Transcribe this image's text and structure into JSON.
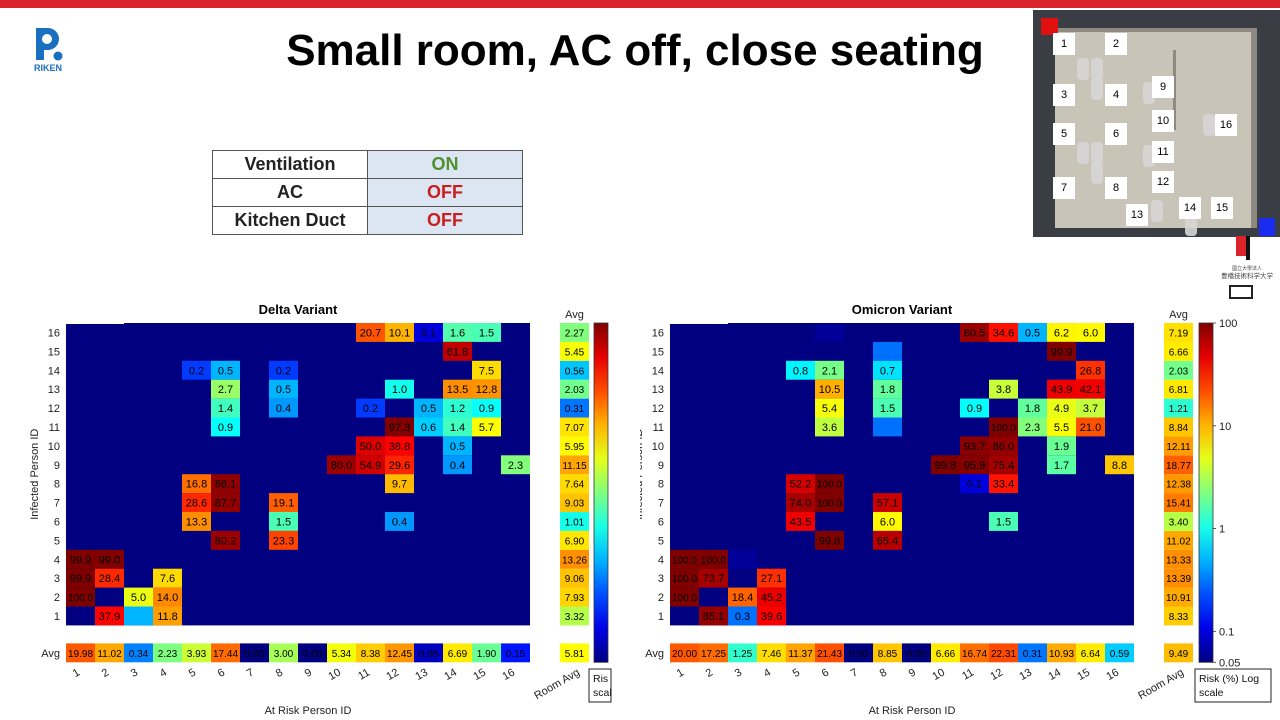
{
  "slide_title": "Small room, AC off, close seating",
  "settings": [
    {
      "label": "Ventilation",
      "value": "ON",
      "color": "#4e8f2e"
    },
    {
      "label": "AC",
      "value": "OFF",
      "color": "#c81e1e"
    },
    {
      "label": "Kitchen Duct",
      "value": "OFF",
      "color": "#c81e1e"
    }
  ],
  "logo_text": "RIKEN",
  "floorplan": {
    "seats": [
      {
        "id": "1",
        "x": 1064,
        "y": 44
      },
      {
        "id": "2",
        "x": 1116,
        "y": 44
      },
      {
        "id": "3",
        "x": 1064,
        "y": 95
      },
      {
        "id": "4",
        "x": 1116,
        "y": 95
      },
      {
        "id": "5",
        "x": 1064,
        "y": 134
      },
      {
        "id": "6",
        "x": 1116,
        "y": 134
      },
      {
        "id": "7",
        "x": 1064,
        "y": 188
      },
      {
        "id": "8",
        "x": 1116,
        "y": 188
      },
      {
        "id": "9",
        "x": 1163,
        "y": 87
      },
      {
        "id": "10",
        "x": 1163,
        "y": 121
      },
      {
        "id": "11",
        "x": 1163,
        "y": 152
      },
      {
        "id": "12",
        "x": 1163,
        "y": 182
      },
      {
        "id": "13",
        "x": 1137,
        "y": 215
      },
      {
        "id": "14",
        "x": 1190,
        "y": 208
      },
      {
        "id": "15",
        "x": 1222,
        "y": 208
      },
      {
        "id": "16",
        "x": 1226,
        "y": 125
      }
    ]
  },
  "university_label": "豊橋技術科学大学",
  "chart_data": [
    {
      "type": "heatmap",
      "title": "Delta Variant",
      "xlabel": "At Risk Person ID",
      "ylabel": "Infected Person ID",
      "x_categories": [
        "1",
        "2",
        "3",
        "4",
        "5",
        "6",
        "7",
        "8",
        "9",
        "10",
        "11",
        "12",
        "13",
        "14",
        "15",
        "16"
      ],
      "y_categories": [
        "1",
        "2",
        "3",
        "4",
        "5",
        "6",
        "7",
        "8",
        "9",
        "10",
        "11",
        "12",
        "13",
        "14",
        "15",
        "16"
      ],
      "room_avg_label": "Room Avg",
      "avg_label": "Avg",
      "cells": [
        {
          "row": "16",
          "col": 11,
          "value": "20.7"
        },
        {
          "row": "16",
          "col": 12,
          "value": "10.1"
        },
        {
          "row": "16",
          "col": 13,
          "value": "0.1"
        },
        {
          "row": "16",
          "col": 14,
          "value": "1.6"
        },
        {
          "row": "16",
          "col": 15,
          "value": "1.5"
        },
        {
          "row": "15",
          "col": 14,
          "value": "61.8"
        },
        {
          "row": "14",
          "col": 5,
          "value": "0.2"
        },
        {
          "row": "14",
          "col": 6,
          "value": "0.5"
        },
        {
          "row": "14",
          "col": 8,
          "value": "0.2"
        },
        {
          "row": "14",
          "col": 15,
          "value": "7.5"
        },
        {
          "row": "13",
          "col": 6,
          "value": "2.7"
        },
        {
          "row": "13",
          "col": 8,
          "value": "0.5"
        },
        {
          "row": "13",
          "col": 12,
          "value": "1.0"
        },
        {
          "row": "13",
          "col": 14,
          "value": "13.5"
        },
        {
          "row": "13",
          "col": 15,
          "value": "12.8"
        },
        {
          "row": "12",
          "col": 6,
          "value": "1.4"
        },
        {
          "row": "12",
          "col": 8,
          "value": "0.4"
        },
        {
          "row": "12",
          "col": 11,
          "value": "0.2"
        },
        {
          "row": "12",
          "col": 13,
          "value": "0.5"
        },
        {
          "row": "12",
          "col": 14,
          "value": "1.2"
        },
        {
          "row": "12",
          "col": 15,
          "value": "0.9"
        },
        {
          "row": "11",
          "col": 6,
          "value": "0.9"
        },
        {
          "row": "11",
          "col": 12,
          "value": "97.3"
        },
        {
          "row": "11",
          "col": 13,
          "value": "0.6"
        },
        {
          "row": "11",
          "col": 14,
          "value": "1.4"
        },
        {
          "row": "11",
          "col": 15,
          "value": "5.7"
        },
        {
          "row": "10",
          "col": 11,
          "value": "50.0"
        },
        {
          "row": "10",
          "col": 12,
          "value": "38.8"
        },
        {
          "row": "10",
          "col": 14,
          "value": "0.5"
        },
        {
          "row": "9",
          "col": 10,
          "value": "80.0"
        },
        {
          "row": "9",
          "col": 11,
          "value": "54.9"
        },
        {
          "row": "9",
          "col": 12,
          "value": "29.6"
        },
        {
          "row": "9",
          "col": 14,
          "value": "0.4"
        },
        {
          "row": "9",
          "col": 16,
          "value": "2.3"
        },
        {
          "row": "8",
          "col": 5,
          "value": "16.8"
        },
        {
          "row": "8",
          "col": 6,
          "value": "88.1"
        },
        {
          "row": "8",
          "col": 12,
          "value": "9.7"
        },
        {
          "row": "7",
          "col": 5,
          "value": "28.6"
        },
        {
          "row": "7",
          "col": 6,
          "value": "87.7"
        },
        {
          "row": "7",
          "col": 8,
          "value": "19.1"
        },
        {
          "row": "6",
          "col": 5,
          "value": "13.3"
        },
        {
          "row": "6",
          "col": 8,
          "value": "1.5"
        },
        {
          "row": "6",
          "col": 12,
          "value": "0.4"
        },
        {
          "row": "5",
          "col": 6,
          "value": "80.2"
        },
        {
          "row": "5",
          "col": 8,
          "value": "23.3"
        },
        {
          "row": "4",
          "col": 1,
          "value": "99.9"
        },
        {
          "row": "4",
          "col": 2,
          "value": "99.0"
        },
        {
          "row": "3",
          "col": 1,
          "value": "99.9"
        },
        {
          "row": "3",
          "col": 2,
          "value": "28.4"
        },
        {
          "row": "3",
          "col": 4,
          "value": "7.6"
        },
        {
          "row": "2",
          "col": 1,
          "value": "100.0"
        },
        {
          "row": "2",
          "col": 3,
          "value": "5.0"
        },
        {
          "row": "2",
          "col": 4,
          "value": "14.0"
        },
        {
          "row": "1",
          "col": 2,
          "value": "37.9"
        },
        {
          "row": "1",
          "col": 4,
          "value": "11.8"
        }
      ],
      "unlabeled_cells": [
        {
          "row": "1",
          "col": 3,
          "value": 0.5
        },
        {
          "row": "11",
          "col": 8,
          "value": 0.05
        }
      ],
      "row_avg": {
        "16": "2.27",
        "15": "5.45",
        "14": "0.56",
        "13": "2.03",
        "12": "0.31",
        "11": "7.07",
        "10": "5.95",
        "9": "11.15",
        "8": "7.64",
        "7": "9.03",
        "6": "1.01",
        "5": "6.90",
        "4": "13.26",
        "3": "9.06",
        "2": "7.93",
        "1": "3.32"
      },
      "col_avg": [
        "19.98",
        "11.02",
        "0.34",
        "2.23",
        "3.93",
        "17.44",
        "0.00",
        "3.00",
        "0.00",
        "5.34",
        "8.38",
        "12.45",
        "0.08",
        "6.69",
        "1.90",
        "0.15"
      ],
      "room_avg": "5.81",
      "colorbar": {
        "scale": "log",
        "min": 0.05,
        "max": 100,
        "label": "Risk (%) Log scale"
      }
    },
    {
      "type": "heatmap",
      "title": "Omicron Variant",
      "xlabel": "At Risk Person ID",
      "ylabel": "Infected Person ID",
      "x_categories": [
        "1",
        "2",
        "3",
        "4",
        "5",
        "6",
        "7",
        "8",
        "9",
        "10",
        "11",
        "12",
        "13",
        "14",
        "15",
        "16"
      ],
      "y_categories": [
        "1",
        "2",
        "3",
        "4",
        "5",
        "6",
        "7",
        "8",
        "9",
        "10",
        "11",
        "12",
        "13",
        "14",
        "15",
        "16"
      ],
      "room_avg_label": "Room Avg",
      "avg_label": "Avg",
      "cells": [
        {
          "row": "16",
          "col": 11,
          "value": "80.5"
        },
        {
          "row": "16",
          "col": 12,
          "value": "34.6"
        },
        {
          "row": "16",
          "col": 13,
          "value": "0.5"
        },
        {
          "row": "16",
          "col": 14,
          "value": "6.2"
        },
        {
          "row": "16",
          "col": 15,
          "value": "6.0"
        },
        {
          "row": "15",
          "col": 14,
          "value": "99.9"
        },
        {
          "row": "14",
          "col": 5,
          "value": "0.8"
        },
        {
          "row": "14",
          "col": 6,
          "value": "2.1"
        },
        {
          "row": "14",
          "col": 8,
          "value": "0.7"
        },
        {
          "row": "14",
          "col": 15,
          "value": "26.8"
        },
        {
          "row": "13",
          "col": 6,
          "value": "10.5"
        },
        {
          "row": "13",
          "col": 8,
          "value": "1.8"
        },
        {
          "row": "13",
          "col": 12,
          "value": "3.8"
        },
        {
          "row": "13",
          "col": 14,
          "value": "43.9"
        },
        {
          "row": "13",
          "col": 15,
          "value": "42.1"
        },
        {
          "row": "12",
          "col": 6,
          "value": "5.4"
        },
        {
          "row": "12",
          "col": 8,
          "value": "1.5"
        },
        {
          "row": "12",
          "col": 11,
          "value": "0.9"
        },
        {
          "row": "12",
          "col": 13,
          "value": "1.8"
        },
        {
          "row": "12",
          "col": 14,
          "value": "4.9"
        },
        {
          "row": "12",
          "col": 15,
          "value": "3.7"
        },
        {
          "row": "11",
          "col": 6,
          "value": "3.6"
        },
        {
          "row": "11",
          "col": 12,
          "value": "100.0"
        },
        {
          "row": "11",
          "col": 13,
          "value": "2.3"
        },
        {
          "row": "11",
          "col": 14,
          "value": "5.5"
        },
        {
          "row": "11",
          "col": 15,
          "value": "21.0"
        },
        {
          "row": "10",
          "col": 11,
          "value": "93.7"
        },
        {
          "row": "10",
          "col": 12,
          "value": "86.0"
        },
        {
          "row": "10",
          "col": 14,
          "value": "1.9"
        },
        {
          "row": "9",
          "col": 10,
          "value": "99.8"
        },
        {
          "row": "9",
          "col": 11,
          "value": "95.9"
        },
        {
          "row": "9",
          "col": 12,
          "value": "75.4"
        },
        {
          "row": "9",
          "col": 14,
          "value": "1.7"
        },
        {
          "row": "9",
          "col": 16,
          "value": "8.8"
        },
        {
          "row": "8",
          "col": 5,
          "value": "52.2"
        },
        {
          "row": "8",
          "col": 6,
          "value": "100.0"
        },
        {
          "row": "8",
          "col": 11,
          "value": "0.1"
        },
        {
          "row": "8",
          "col": 12,
          "value": "33.4"
        },
        {
          "row": "7",
          "col": 5,
          "value": "74.0"
        },
        {
          "row": "7",
          "col": 6,
          "value": "100.0"
        },
        {
          "row": "7",
          "col": 8,
          "value": "57.1"
        },
        {
          "row": "6",
          "col": 5,
          "value": "43.5"
        },
        {
          "row": "6",
          "col": 8,
          "value": "6.0"
        },
        {
          "row": "6",
          "col": 12,
          "value": "1.5"
        },
        {
          "row": "5",
          "col": 6,
          "value": "99.8"
        },
        {
          "row": "5",
          "col": 8,
          "value": "65.4"
        },
        {
          "row": "4",
          "col": 1,
          "value": "100.0"
        },
        {
          "row": "4",
          "col": 2,
          "value": "100.0"
        },
        {
          "row": "3",
          "col": 1,
          "value": "100.0"
        },
        {
          "row": "3",
          "col": 2,
          "value": "73.7"
        },
        {
          "row": "3",
          "col": 4,
          "value": "27.1"
        },
        {
          "row": "2",
          "col": 1,
          "value": "100.0"
        },
        {
          "row": "2",
          "col": 3,
          "value": "18.4"
        },
        {
          "row": "2",
          "col": 4,
          "value": "45.2"
        },
        {
          "row": "1",
          "col": 2,
          "value": "85.1"
        },
        {
          "row": "1",
          "col": 3,
          "value": "0.3"
        },
        {
          "row": "1",
          "col": 4,
          "value": "39.6"
        }
      ],
      "unlabeled_cells": [
        {
          "row": "15",
          "col": 8,
          "value": 0.3
        },
        {
          "row": "11",
          "col": 8,
          "value": 0.3
        },
        {
          "row": "4",
          "col": 3,
          "value": 0.06
        },
        {
          "row": "16",
          "col": 6,
          "value": 0.06
        }
      ],
      "row_avg": {
        "16": "7.19",
        "15": "6.66",
        "14": "2.03",
        "13": "6.81",
        "12": "1.21",
        "11": "8.84",
        "10": "12.11",
        "9": "18.77",
        "8": "12.38",
        "7": "15.41",
        "6": "3.40",
        "5": "11.02",
        "4": "13.33",
        "3": "13.39",
        "2": "10.91",
        "1": "8.33"
      },
      "col_avg": [
        "20.00",
        "17.25",
        "1.25",
        "7.46",
        "11.37",
        "21.43",
        "0.00",
        "8.85",
        "0.00",
        "6.66",
        "16.74",
        "22.31",
        "0.31",
        "10.93",
        "6.64",
        "0.59"
      ],
      "room_avg": "9.49",
      "colorbar": {
        "scale": "log",
        "min": 0.05,
        "max": 100,
        "label": "Risk (%) Log scale"
      }
    }
  ],
  "colorbar_ticks": [
    "100",
    "10",
    "1",
    "0.1",
    "0.05"
  ],
  "colorbar_label_left_visible": "Risk (%) Log scale",
  "colors": {
    "accent_red": "#d9242b",
    "low": "#00008f",
    "high": "#800000"
  }
}
